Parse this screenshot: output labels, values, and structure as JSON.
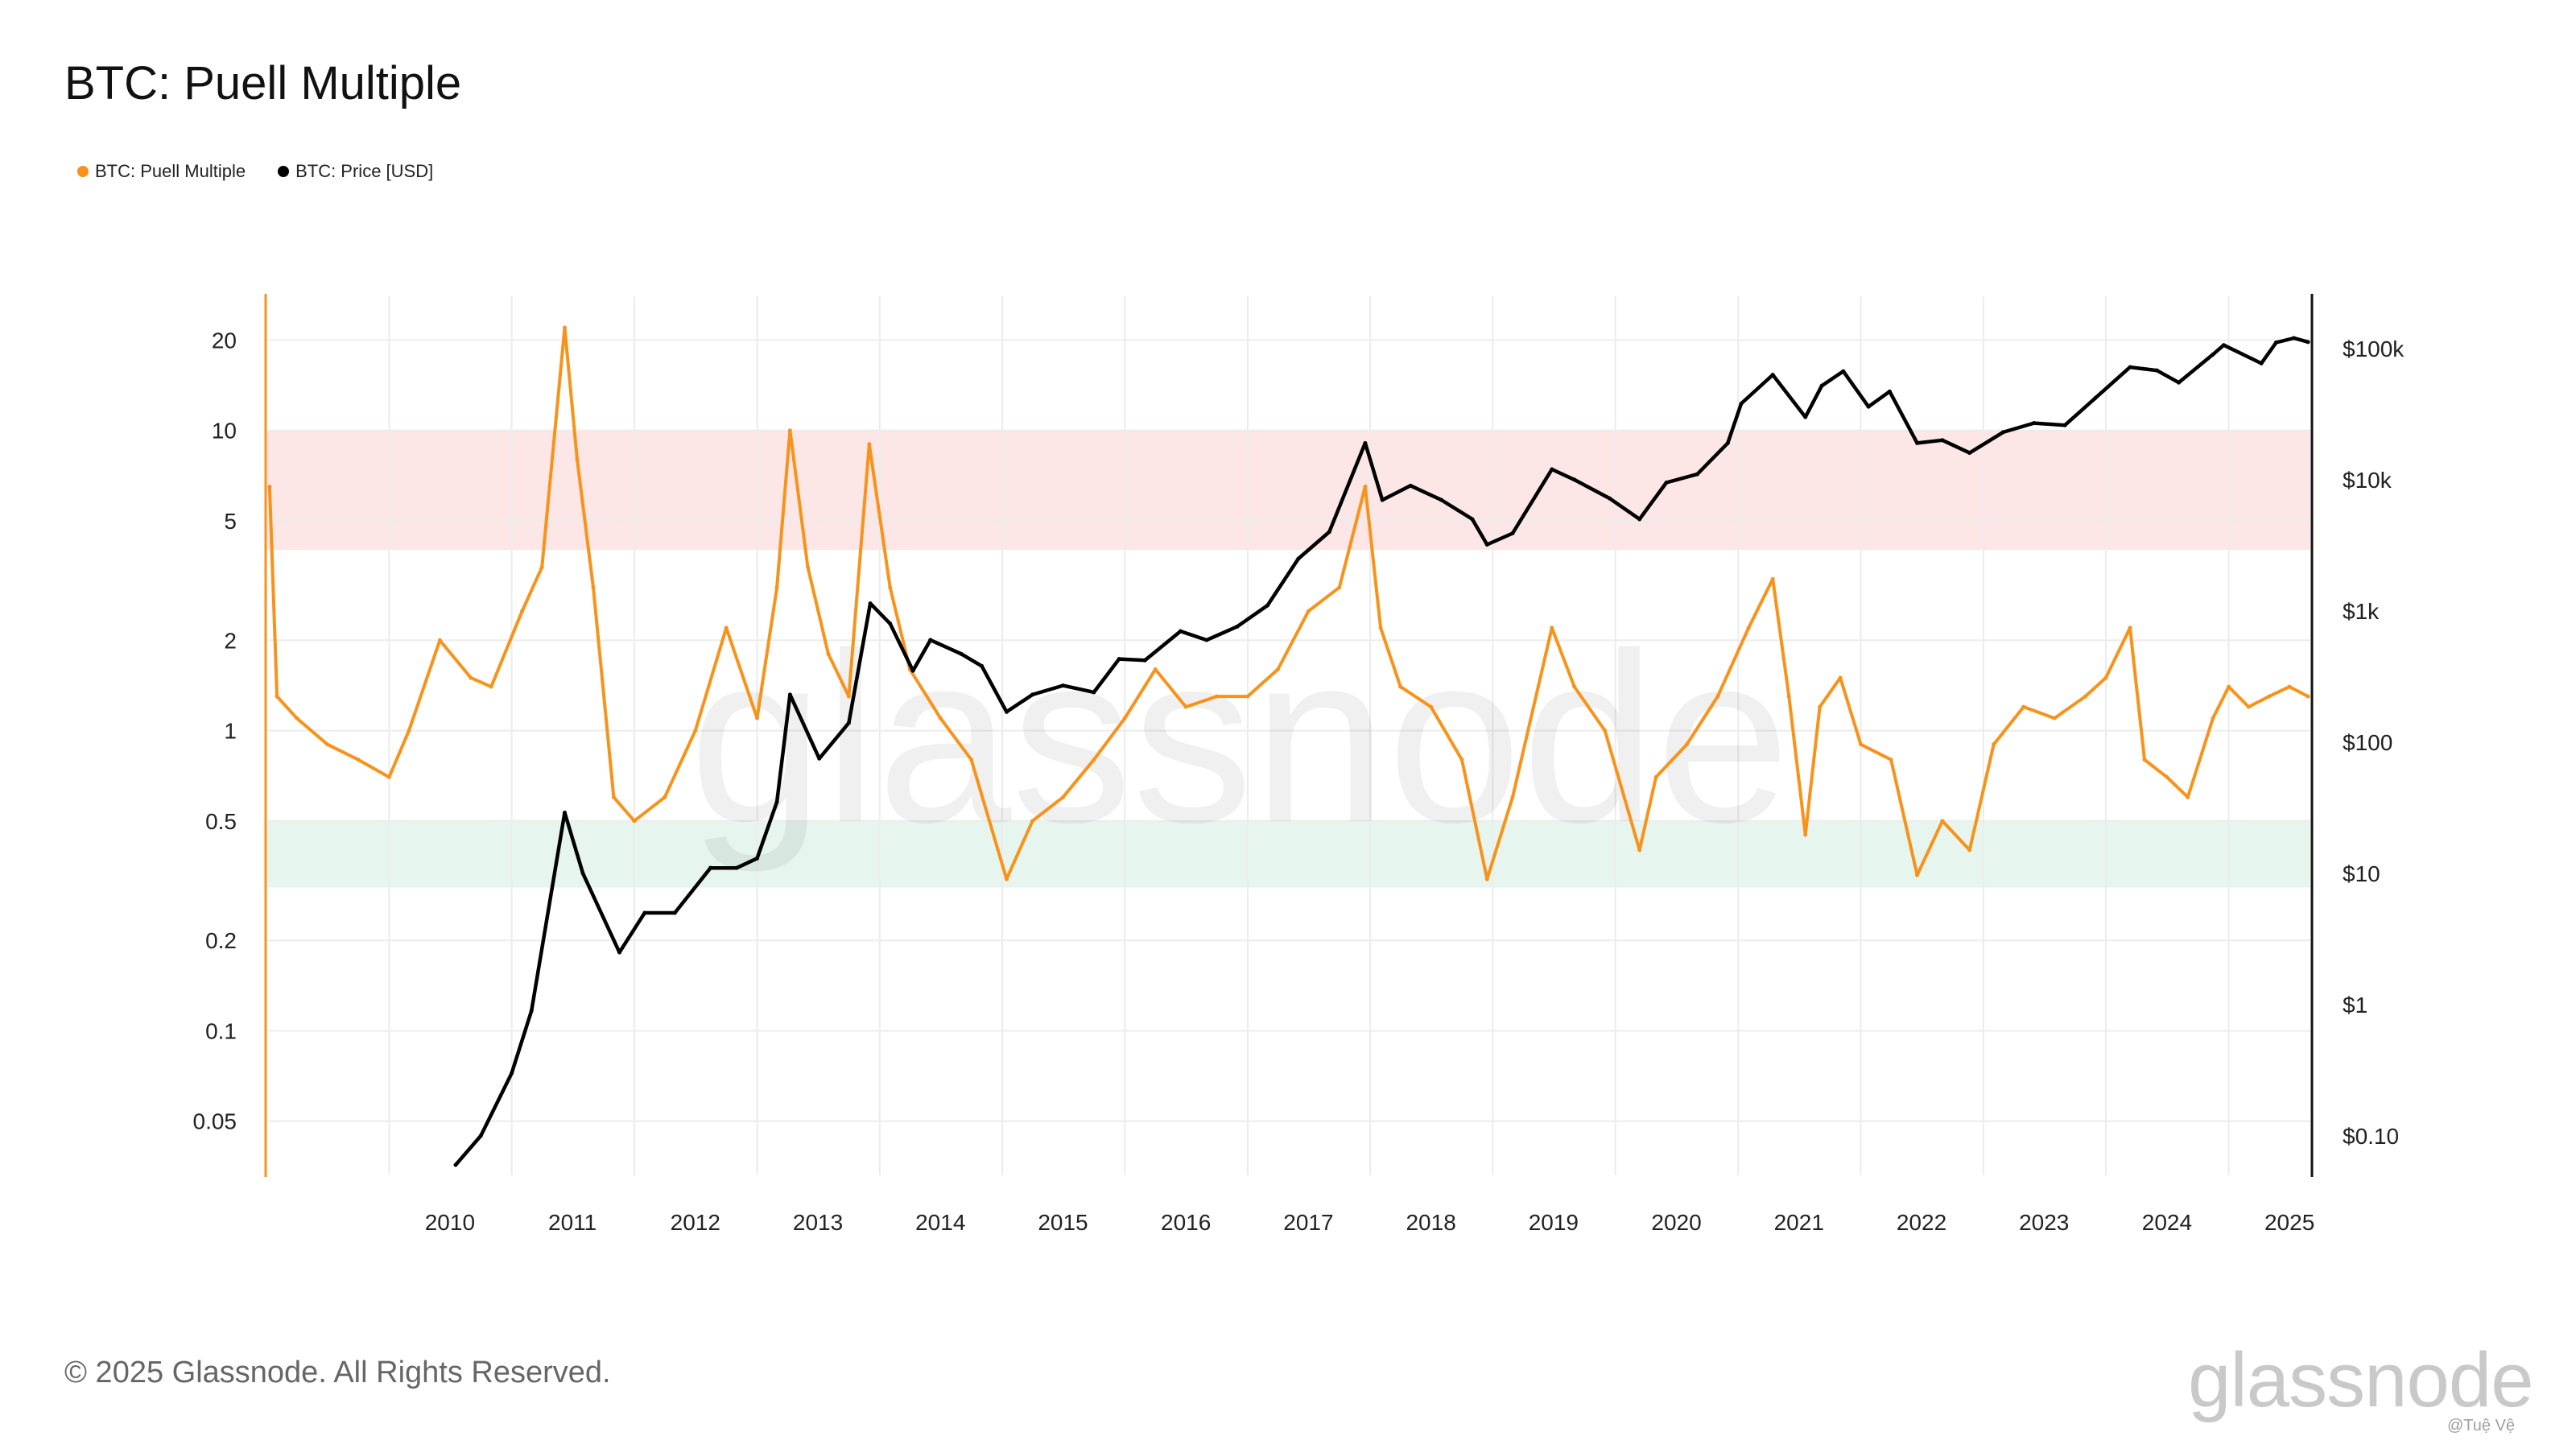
{
  "title": "BTC: Puell Multiple",
  "legend": [
    {
      "label": "BTC: Puell Multiple",
      "color": "#f7931a"
    },
    {
      "label": "BTC: Price [USD]",
      "color": "#000000"
    }
  ],
  "footer": "© 2025 Glassnode. All Rights Reserved.",
  "brand": "glassnode",
  "brand_credit": "@Tuệ Vệ",
  "watermark": "glassnode",
  "chart_data": {
    "type": "line",
    "title": "BTC: Puell Multiple",
    "x_ticks": [
      "2010",
      "2011",
      "2012",
      "2013",
      "2014",
      "2015",
      "2016",
      "2017",
      "2018",
      "2019",
      "2020",
      "2021",
      "2022",
      "2023",
      "2024",
      "2025"
    ],
    "xlim": [
      "2009-01-03",
      "2025-09-01"
    ],
    "y_left": {
      "scale": "log",
      "ylim": [
        0.033,
        28
      ],
      "ticks": [
        20,
        10,
        5,
        2,
        1,
        0.5,
        0.2,
        0.1,
        0.05
      ],
      "tick_labels": [
        "20",
        "10",
        "5",
        "2",
        "1",
        "0.5",
        "0.2",
        "0.1",
        "0.05"
      ]
    },
    "y_right": {
      "scale": "log",
      "ylim": [
        0.05,
        250000
      ],
      "ticks": [
        100000,
        10000,
        1000,
        100,
        10,
        1,
        0.1
      ],
      "tick_labels": [
        "$100k",
        "$10k",
        "$1k",
        "$100",
        "$10",
        "$1",
        "$0.10"
      ]
    },
    "bands": [
      {
        "from": 4,
        "to": 10,
        "color": "#fde6e6"
      },
      {
        "from": 0.3,
        "to": 0.5,
        "color": "#e6f5ee"
      }
    ],
    "grid": true,
    "legend_position": "top-left",
    "series": [
      {
        "name": "BTC: Puell Multiple",
        "axis": "left",
        "color": "#f7931a",
        "x": [
          "2009-01-10",
          "2009-02-01",
          "2009-04-01",
          "2009-07-01",
          "2009-10-01",
          "2010-01-01",
          "2010-03-01",
          "2010-06-01",
          "2010-09-01",
          "2010-11-01",
          "2011-02-01",
          "2011-04-01",
          "2011-06-08",
          "2011-07-15",
          "2011-09-01",
          "2011-11-01",
          "2012-01-01",
          "2012-04-01",
          "2012-07-01",
          "2012-10-01",
          "2013-01-01",
          "2013-03-01",
          "2013-04-09",
          "2013-06-01",
          "2013-08-01",
          "2013-10-01",
          "2013-12-01",
          "2014-02-01",
          "2014-04-01",
          "2014-07-01",
          "2014-10-01",
          "2015-01-14",
          "2015-04-01",
          "2015-07-01",
          "2015-10-01",
          "2016-01-01",
          "2016-04-01",
          "2016-07-01",
          "2016-10-01",
          "2017-01-01",
          "2017-04-01",
          "2017-07-01",
          "2017-10-01",
          "2017-12-17",
          "2018-02-01",
          "2018-04-01",
          "2018-07-01",
          "2018-10-01",
          "2018-12-15",
          "2019-03-01",
          "2019-06-26",
          "2019-09-01",
          "2019-12-01",
          "2020-03-13",
          "2020-05-01",
          "2020-08-01",
          "2020-11-01",
          "2021-02-01",
          "2021-04-14",
          "2021-06-01",
          "2021-07-20",
          "2021-09-01",
          "2021-11-01",
          "2022-01-01",
          "2022-04-01",
          "2022-06-18",
          "2022-09-01",
          "2022-11-21",
          "2023-02-01",
          "2023-05-01",
          "2023-08-01",
          "2023-11-01",
          "2024-01-01",
          "2024-03-13",
          "2024-04-25",
          "2024-07-01",
          "2024-09-01",
          "2024-11-15",
          "2025-01-01",
          "2025-03-01",
          "2025-05-01",
          "2025-07-01",
          "2025-08-25"
        ],
        "y": [
          6.5,
          1.3,
          1.1,
          0.9,
          0.8,
          0.7,
          1.0,
          2.0,
          1.5,
          1.4,
          2.5,
          3.5,
          22,
          8,
          3,
          0.6,
          0.5,
          0.6,
          1.0,
          2.2,
          1.1,
          3.0,
          10,
          3.5,
          1.8,
          1.3,
          9,
          3.0,
          1.6,
          1.1,
          0.8,
          0.32,
          0.5,
          0.6,
          0.8,
          1.1,
          1.6,
          1.2,
          1.3,
          1.3,
          1.6,
          2.5,
          3.0,
          6.5,
          2.2,
          1.4,
          1.2,
          0.8,
          0.32,
          0.6,
          2.2,
          1.4,
          1.0,
          0.4,
          0.7,
          0.9,
          1.3,
          2.2,
          3.2,
          1.3,
          0.45,
          1.2,
          1.5,
          0.9,
          0.8,
          0.33,
          0.5,
          0.4,
          0.9,
          1.2,
          1.1,
          1.3,
          1.5,
          2.2,
          0.8,
          0.7,
          0.6,
          1.1,
          1.4,
          1.2,
          1.3,
          1.4,
          1.3
        ]
      },
      {
        "name": "BTC: Price [USD]",
        "axis": "right",
        "color": "#000000",
        "x": [
          "2010-07-18",
          "2010-10-01",
          "2011-01-01",
          "2011-03-01",
          "2011-06-08",
          "2011-08-01",
          "2011-11-18",
          "2012-02-01",
          "2012-05-01",
          "2012-08-15",
          "2012-11-01",
          "2013-01-01",
          "2013-03-01",
          "2013-04-09",
          "2013-07-05",
          "2013-10-01",
          "2013-12-04",
          "2014-02-01",
          "2014-04-10",
          "2014-06-01",
          "2014-09-01",
          "2014-11-01",
          "2015-01-14",
          "2015-04-01",
          "2015-07-01",
          "2015-10-01",
          "2015-12-15",
          "2016-03-01",
          "2016-06-15",
          "2016-09-01",
          "2016-12-01",
          "2017-03-01",
          "2017-06-01",
          "2017-09-01",
          "2017-12-17",
          "2018-02-06",
          "2018-05-01",
          "2018-08-01",
          "2018-11-01",
          "2018-12-15",
          "2019-03-01",
          "2019-06-26",
          "2019-09-01",
          "2019-12-15",
          "2020-03-13",
          "2020-06-01",
          "2020-09-01",
          "2020-12-01",
          "2021-01-10",
          "2021-04-14",
          "2021-07-20",
          "2021-09-07",
          "2021-11-10",
          "2022-01-24",
          "2022-03-28",
          "2022-06-18",
          "2022-09-01",
          "2022-11-21",
          "2023-03-01",
          "2023-06-01",
          "2023-09-01",
          "2023-12-01",
          "2024-03-13",
          "2024-06-01",
          "2024-08-05",
          "2024-11-15",
          "2024-12-17",
          "2025-04-08",
          "2025-05-22",
          "2025-07-14",
          "2025-08-25"
        ],
        "y": [
          0.06,
          0.1,
          0.3,
          0.9,
          29,
          10,
          2.5,
          5,
          5,
          11,
          11,
          13,
          35,
          230,
          75,
          140,
          1140,
          800,
          350,
          600,
          470,
          380,
          170,
          230,
          270,
          240,
          430,
          420,
          700,
          600,
          760,
          1100,
          2500,
          4000,
          19000,
          7000,
          9000,
          7000,
          5000,
          3200,
          3900,
          12000,
          10000,
          7200,
          5000,
          9500,
          11000,
          19000,
          38000,
          63000,
          30000,
          52000,
          67000,
          36000,
          47000,
          19000,
          20000,
          16000,
          23000,
          27000,
          26000,
          42000,
          72000,
          68000,
          55000,
          90000,
          106000,
          77000,
          111000,
          120000,
          112000
        ]
      }
    ]
  }
}
